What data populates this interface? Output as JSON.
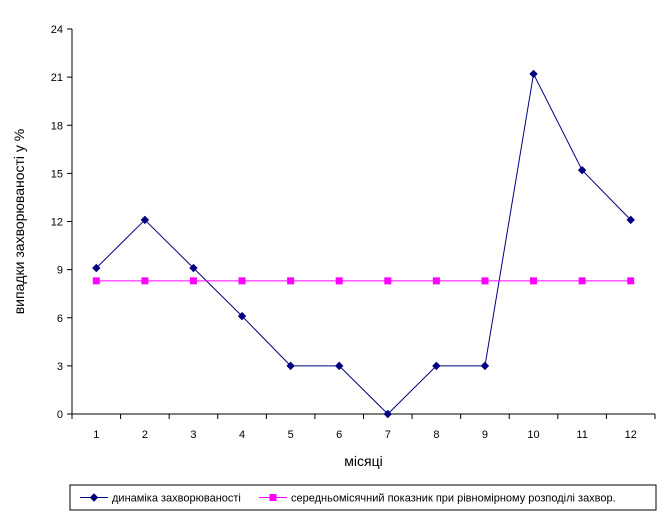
{
  "chart_data": {
    "type": "line",
    "xlabel": "місяці",
    "ylabel": "випадки захворюваності у %",
    "ylim": [
      0,
      24
    ],
    "yticks": [
      0,
      3,
      6,
      9,
      12,
      15,
      18,
      21,
      24
    ],
    "categories": [
      "1",
      "2",
      "3",
      "4",
      "5",
      "6",
      "7",
      "8",
      "9",
      "10",
      "11",
      "12"
    ],
    "grid": false,
    "legend_position": "bottom",
    "series": [
      {
        "name": "динаміка захворюваності",
        "values": [
          9.1,
          12.1,
          9.1,
          6.1,
          3.0,
          3.0,
          0.0,
          3.0,
          3.0,
          21.2,
          15.2,
          12.1
        ],
        "color": "#000080",
        "marker": "diamond"
      },
      {
        "name": "середньомісячний показник при рівномірному розподілі захвор.",
        "values": [
          8.3,
          8.3,
          8.3,
          8.3,
          8.3,
          8.3,
          8.3,
          8.3,
          8.3,
          8.3,
          8.3,
          8.3
        ],
        "color": "#FF00FF",
        "marker": "square"
      }
    ]
  }
}
